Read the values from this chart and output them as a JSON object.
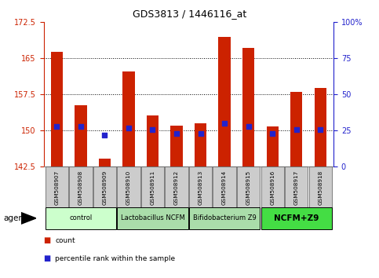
{
  "title": "GDS3813 / 1446116_at",
  "samples": [
    "GSM508907",
    "GSM508908",
    "GSM508909",
    "GSM508910",
    "GSM508911",
    "GSM508912",
    "GSM508913",
    "GSM508914",
    "GSM508915",
    "GSM508916",
    "GSM508917",
    "GSM508918"
  ],
  "counts": [
    166.3,
    155.2,
    144.2,
    162.3,
    153.2,
    151.0,
    151.5,
    169.5,
    167.2,
    150.8,
    158.0,
    158.8
  ],
  "percentile": [
    28,
    28,
    22,
    27,
    26,
    23,
    23,
    30,
    28,
    23,
    26,
    26
  ],
  "ylim_left": [
    142.5,
    172.5
  ],
  "ylim_right": [
    0,
    100
  ],
  "yticks_left": [
    142.5,
    150.0,
    157.5,
    165.0,
    172.5
  ],
  "ytick_labels_left": [
    "142.5",
    "150",
    "157.5",
    "165",
    "172.5"
  ],
  "yticks_right": [
    0,
    25,
    50,
    75,
    100
  ],
  "ytick_labels_right": [
    "0",
    "25",
    "50",
    "75",
    "100%"
  ],
  "groups": [
    {
      "label": "control",
      "indices": [
        0,
        1,
        2
      ],
      "color": "#ccffcc",
      "bold": false
    },
    {
      "label": "Lactobacillus NCFM",
      "indices": [
        3,
        4,
        5
      ],
      "color": "#aaddaa",
      "bold": false
    },
    {
      "label": "Bifidobacterium Z9",
      "indices": [
        6,
        7,
        8
      ],
      "color": "#aaddaa",
      "bold": false
    },
    {
      "label": "NCFM+Z9",
      "indices": [
        9,
        10,
        11
      ],
      "color": "#44dd44",
      "bold": true
    }
  ],
  "bar_color": "#cc2200",
  "dot_color": "#2222cc",
  "background_plot": "#ffffff",
  "background_label": "#cccccc",
  "title_color": "#000000",
  "left_axis_color": "#cc2200",
  "right_axis_color": "#2222cc",
  "bar_width": 0.5
}
